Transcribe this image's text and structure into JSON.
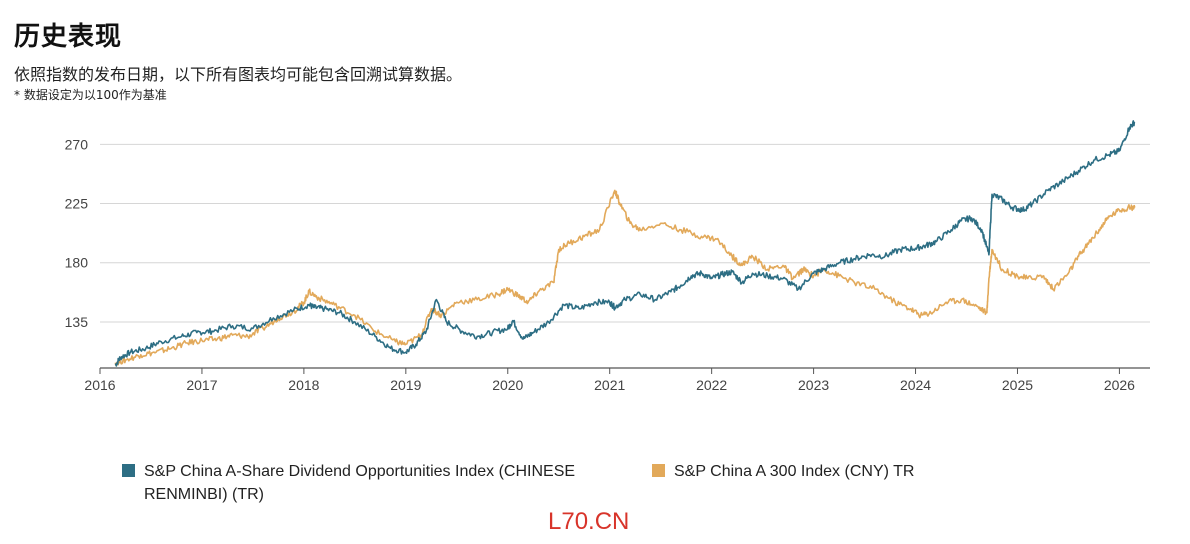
{
  "header": {
    "title": "历史表现",
    "subtitle": "依照指数的发布日期，以下所有图表均可能包含回溯试算数据。",
    "note": "* 数据设定为以100作为基准"
  },
  "watermark": "L70.CN",
  "colors": {
    "series1": "#2d6e84",
    "series2": "#e2a95a",
    "grid": "#d6d6d6",
    "axis": "#555555"
  },
  "chart_data": {
    "type": "line",
    "title": "",
    "xlabel": "",
    "ylabel": "",
    "xlim": [
      2016.0,
      2026.3
    ],
    "ylim": [
      100,
      290
    ],
    "yticks": [
      135,
      180,
      225,
      270
    ],
    "xticks": [
      2016,
      2017,
      2018,
      2019,
      2020,
      2021,
      2022,
      2023,
      2024,
      2025,
      2026
    ],
    "xtick_labels": [
      "2016",
      "2017",
      "2018",
      "2019",
      "2020",
      "2021",
      "2022",
      "2023",
      "2024",
      "2025",
      "2026"
    ],
    "ytick_labels": [
      "135",
      "180",
      "225",
      "270"
    ],
    "grid": true,
    "legend_position": "bottom",
    "series": [
      {
        "name": "S&P China A-Share Dividend Opportunities Index (CHINESE RENMINBI) (TR)",
        "x": [
          2016.15,
          2016.2,
          2016.3,
          2016.45,
          2016.6,
          2016.8,
          2016.95,
          2017.1,
          2017.3,
          2017.5,
          2017.7,
          2017.9,
          2018.05,
          2018.1,
          2018.2,
          2018.35,
          2018.5,
          2018.7,
          2018.85,
          2019.0,
          2019.1,
          2019.2,
          2019.3,
          2019.4,
          2019.55,
          2019.7,
          2019.85,
          2020.0,
          2020.05,
          2020.15,
          2020.25,
          2020.4,
          2020.55,
          2020.7,
          2020.85,
          2021.0,
          2021.05,
          2021.15,
          2021.3,
          2021.45,
          2021.6,
          2021.7,
          2021.8,
          2021.9,
          2022.0,
          2022.1,
          2022.2,
          2022.3,
          2022.4,
          2022.55,
          2022.7,
          2022.85,
          2023.0,
          2023.1,
          2023.25,
          2023.4,
          2023.55,
          2023.7,
          2023.85,
          2024.0,
          2024.1,
          2024.2,
          2024.35,
          2024.45,
          2024.55,
          2024.65,
          2024.72,
          2024.75,
          2024.85,
          2024.95,
          2025.05,
          2025.15,
          2025.3,
          2025.45,
          2025.6,
          2025.75,
          2025.9,
          2026.0,
          2026.1,
          2026.15
        ],
        "values": [
          102,
          108,
          112,
          115,
          120,
          124,
          127,
          128,
          132,
          130,
          138,
          144,
          148,
          146,
          145,
          142,
          135,
          124,
          115,
          112,
          118,
          128,
          152,
          135,
          128,
          124,
          127,
          130,
          136,
          122,
          127,
          135,
          148,
          145,
          150,
          150,
          146,
          152,
          156,
          152,
          158,
          163,
          170,
          172,
          168,
          171,
          173,
          165,
          172,
          170,
          168,
          160,
          172,
          175,
          180,
          183,
          186,
          185,
          190,
          191,
          193,
          196,
          205,
          212,
          214,
          205,
          186,
          232,
          228,
          222,
          220,
          225,
          235,
          242,
          250,
          258,
          262,
          265,
          283,
          287
        ]
      },
      {
        "name": "S&P China A 300 Index (CNY) TR",
        "x": [
          2016.15,
          2016.25,
          2016.4,
          2016.55,
          2016.7,
          2016.85,
          2017.0,
          2017.15,
          2017.3,
          2017.45,
          2017.6,
          2017.75,
          2017.9,
          2018.0,
          2018.05,
          2018.15,
          2018.3,
          2018.5,
          2018.7,
          2018.9,
          2019.0,
          2019.15,
          2019.25,
          2019.35,
          2019.5,
          2019.7,
          2019.9,
          2020.0,
          2020.1,
          2020.2,
          2020.3,
          2020.45,
          2020.5,
          2020.6,
          2020.75,
          2020.9,
          2021.05,
          2021.1,
          2021.2,
          2021.3,
          2021.5,
          2021.7,
          2021.9,
          2022.05,
          2022.2,
          2022.3,
          2022.4,
          2022.55,
          2022.7,
          2022.8,
          2022.9,
          2023.0,
          2023.1,
          2023.25,
          2023.4,
          2023.6,
          2023.8,
          2023.95,
          2024.05,
          2024.15,
          2024.3,
          2024.45,
          2024.6,
          2024.7,
          2024.72,
          2024.75,
          2024.85,
          2025.0,
          2025.1,
          2025.25,
          2025.35,
          2025.5,
          2025.6,
          2025.7,
          2025.8,
          2025.9,
          2026.0,
          2026.1,
          2026.15
        ],
        "values": [
          104,
          106,
          110,
          112,
          115,
          119,
          121,
          122,
          125,
          124,
          130,
          138,
          143,
          150,
          158,
          153,
          148,
          140,
          128,
          120,
          118,
          125,
          145,
          140,
          150,
          152,
          156,
          160,
          155,
          150,
          158,
          165,
          190,
          195,
          200,
          205,
          235,
          225,
          210,
          205,
          210,
          205,
          200,
          198,
          185,
          178,
          185,
          175,
          178,
          168,
          175,
          170,
          175,
          170,
          165,
          160,
          150,
          145,
          140,
          142,
          150,
          152,
          147,
          142,
          168,
          190,
          175,
          170,
          168,
          170,
          160,
          172,
          185,
          195,
          205,
          215,
          220,
          222,
          222
        ]
      }
    ]
  }
}
